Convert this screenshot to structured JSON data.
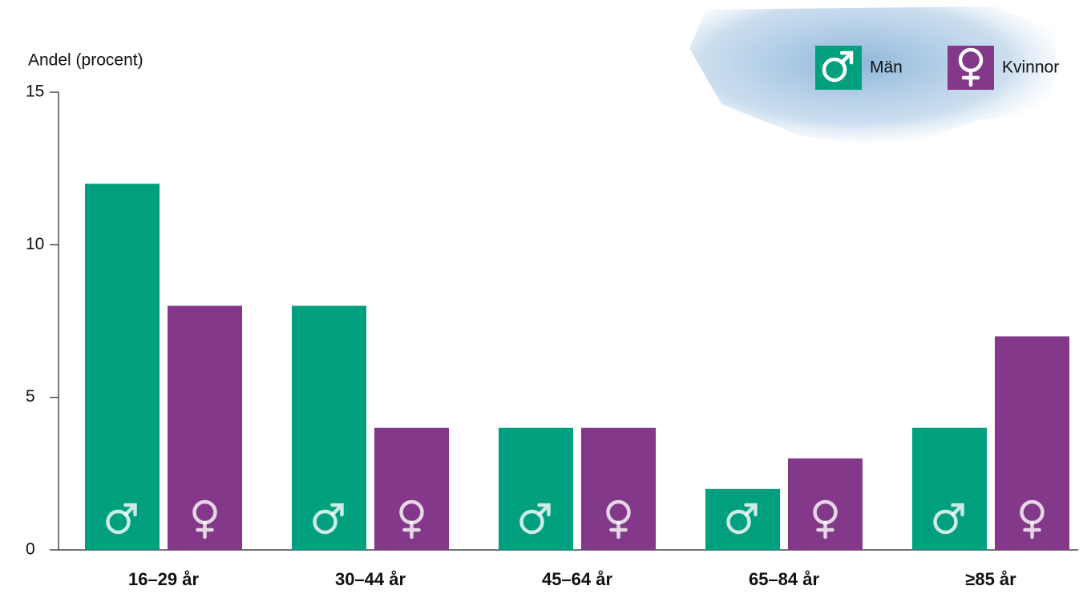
{
  "chart_data": {
    "type": "bar",
    "y_label": "Andel (procent)",
    "categories": [
      "16–29 år",
      "30–44 år",
      "45–64 år",
      "65–84 år",
      "≥85 år"
    ],
    "series": [
      {
        "name": "Män",
        "color": "#00a07e",
        "values": [
          12,
          8,
          4,
          2,
          4
        ]
      },
      {
        "name": "Kvinnor",
        "color": "#833889",
        "values": [
          8,
          4,
          4,
          3,
          7
        ]
      }
    ],
    "ylim": [
      0,
      15
    ],
    "yticks": [
      0,
      5,
      10,
      15
    ]
  }
}
